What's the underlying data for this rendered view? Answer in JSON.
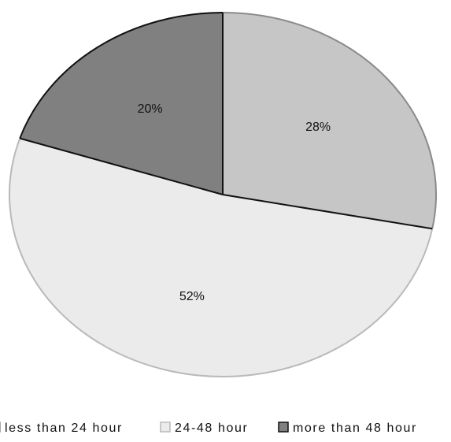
{
  "chart_data": {
    "type": "pie",
    "slices": [
      {
        "label": "less than 24 hour",
        "value": 28,
        "display": "28%",
        "color": "#c6c6c6",
        "edge": "#8a8a8a"
      },
      {
        "label": "24-48 hour",
        "value": 52,
        "display": "52%",
        "color": "#ebebeb",
        "edge": "#b9b9b9"
      },
      {
        "label": "more than 48 hour",
        "value": 20,
        "display": "20%",
        "color": "#808080",
        "edge": "#111111"
      }
    ],
    "start_angle_deg": 0,
    "direction": "clockwise",
    "legend_position": "bottom"
  }
}
